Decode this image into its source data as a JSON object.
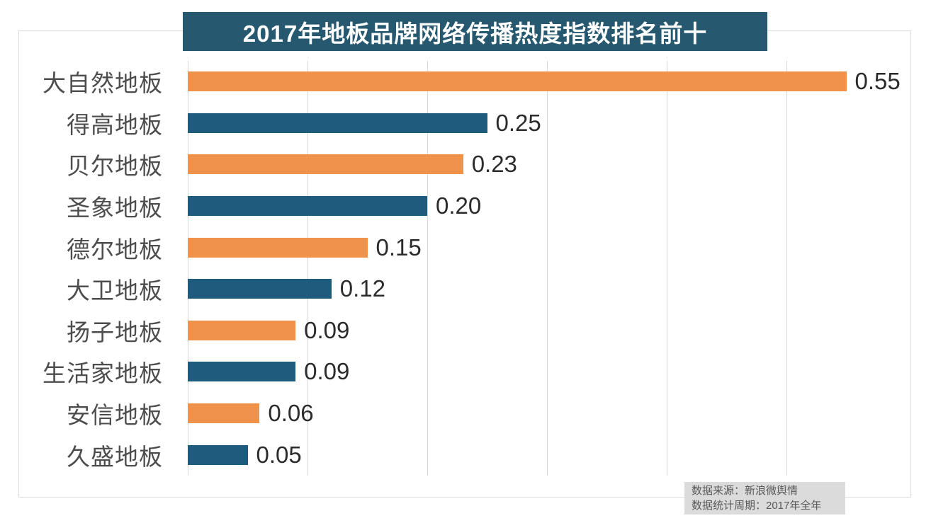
{
  "title": "2017年地板品牌网络传播热度指数排名前十",
  "source_note": {
    "line1": "数据来源：新浪微舆情",
    "line2": "数据统计周期：2017年全年"
  },
  "colors": {
    "banner_bg": "#26586f",
    "bar_orange": "#f0924b",
    "bar_blue": "#1e5b7d",
    "gridline": "#d9d9d9",
    "border": "#dcdcdc",
    "label_text": "#4d4d4d",
    "value_text": "#2b2b2b",
    "note_bg": "#dbdbdb",
    "note_text": "#595959"
  },
  "chart_data": {
    "type": "bar",
    "orientation": "horizontal",
    "title": "2017年地板品牌网络传播热度指数排名前十",
    "categories": [
      "大自然地板",
      "得高地板",
      "贝尔地板",
      "圣象地板",
      "德尔地板",
      "大卫地板",
      "扬子地板",
      "生活家地板",
      "安信地板",
      "久盛地板"
    ],
    "values": [
      0.55,
      0.25,
      0.23,
      0.2,
      0.15,
      0.12,
      0.09,
      0.09,
      0.06,
      0.05
    ],
    "value_labels": [
      "0.55",
      "0.25",
      "0.23",
      "0.20",
      "0.15",
      "0.12",
      "0.09",
      "0.09",
      "0.06",
      "0.05"
    ],
    "xlabel": "",
    "ylabel": "",
    "xlim": [
      0,
      0.6
    ],
    "gridline_interval": 0.1,
    "grid": true,
    "legend_position": "none",
    "bar_colors_alternating": [
      "#f0924b",
      "#1e5b7d"
    ]
  }
}
